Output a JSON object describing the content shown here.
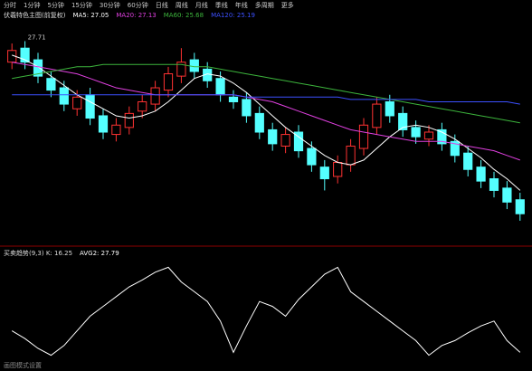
{
  "toolbar": [
    "分时",
    "1分钟",
    "5分钟",
    "15分钟",
    "30分钟",
    "60分钟",
    "日线",
    "周线",
    "月线",
    "季线",
    "年线",
    "多周期",
    "更多"
  ],
  "chart_data": [
    {
      "type": "candlestick",
      "title": "伏羲特色主图(前复权)",
      "annotation": "27.71",
      "ylim": [
        19.5,
        28.5
      ],
      "up_color": "#ff3232",
      "down_color": "#54ffff",
      "open": [
        27.0,
        27.6,
        27.1,
        26.3,
        25.9,
        25.0,
        25.6,
        24.7,
        23.9,
        24.2,
        24.9,
        25.2,
        25.8,
        26.4,
        27.1,
        26.7,
        26.3,
        25.5,
        25.4,
        24.8,
        24.1,
        23.4,
        24.0,
        23.3,
        22.5,
        22.1,
        22.6,
        23.3,
        24.2,
        25.3,
        24.8,
        24.2,
        23.7,
        24.1,
        23.6,
        23.1,
        22.5,
        22.0,
        21.6,
        21.1
      ],
      "high": [
        27.8,
        27.9,
        27.4,
        26.6,
        26.2,
        25.8,
        25.9,
        25.0,
        24.6,
        25.1,
        25.6,
        26.2,
        26.8,
        27.6,
        27.4,
        27.0,
        26.6,
        25.8,
        25.7,
        25.1,
        24.4,
        24.2,
        24.3,
        23.6,
        22.8,
        23.0,
        23.7,
        24.6,
        25.5,
        25.6,
        25.1,
        24.5,
        24.3,
        24.4,
        23.9,
        23.4,
        22.8,
        22.3,
        21.9,
        21.4
      ],
      "low": [
        26.7,
        26.7,
        26.1,
        25.5,
        24.9,
        24.7,
        24.3,
        23.7,
        23.6,
        23.9,
        24.6,
        24.9,
        25.5,
        26.1,
        26.3,
        25.9,
        25.3,
        25.0,
        24.4,
        23.7,
        23.2,
        23.1,
        22.9,
        22.3,
        21.5,
        21.8,
        22.3,
        23.0,
        23.9,
        24.4,
        23.8,
        23.5,
        23.4,
        23.2,
        22.7,
        22.1,
        21.6,
        21.2,
        20.7,
        20.2
      ],
      "close": [
        27.5,
        27.0,
        26.4,
        25.8,
        25.2,
        25.5,
        24.6,
        24.0,
        24.3,
        24.8,
        25.3,
        25.9,
        26.5,
        27.0,
        26.6,
        26.2,
        25.6,
        25.3,
        24.7,
        24.0,
        23.5,
        23.9,
        23.2,
        22.6,
        22.0,
        22.7,
        23.4,
        24.3,
        25.2,
        24.7,
        24.1,
        23.8,
        24.0,
        23.5,
        23.0,
        22.4,
        21.9,
        21.5,
        21.0,
        20.5
      ],
      "series": [
        {
          "name": "MA5: 27.05",
          "color": "#ffffff",
          "values": [
            27.3,
            27.1,
            26.8,
            26.4,
            26.0,
            25.6,
            25.3,
            25.0,
            24.7,
            24.6,
            24.7,
            24.9,
            25.3,
            25.8,
            26.3,
            26.5,
            26.4,
            26.1,
            25.7,
            25.2,
            24.7,
            24.2,
            23.8,
            23.4,
            23.0,
            22.7,
            22.6,
            22.8,
            23.3,
            23.8,
            24.2,
            24.3,
            24.2,
            24.0,
            23.7,
            23.3,
            22.9,
            22.4,
            22.0,
            21.5
          ]
        },
        {
          "name": "MA20: 27.13",
          "color": "#e040e0",
          "values": [
            27.0,
            26.9,
            26.8,
            26.7,
            26.6,
            26.5,
            26.3,
            26.1,
            25.9,
            25.8,
            25.7,
            25.6,
            25.6,
            25.6,
            25.6,
            25.6,
            25.6,
            25.6,
            25.5,
            25.4,
            25.3,
            25.1,
            24.9,
            24.7,
            24.5,
            24.3,
            24.1,
            24.0,
            23.9,
            23.8,
            23.7,
            23.6,
            23.6,
            23.6,
            23.5,
            23.4,
            23.3,
            23.2,
            23.0,
            22.8
          ]
        },
        {
          "name": "MA60: 25.68",
          "color": "#3cb43c",
          "values": [
            26.3,
            26.4,
            26.5,
            26.6,
            26.7,
            26.8,
            26.8,
            26.9,
            26.9,
            26.9,
            26.9,
            26.9,
            26.9,
            26.9,
            26.8,
            26.8,
            26.7,
            26.6,
            26.5,
            26.4,
            26.3,
            26.2,
            26.1,
            26.0,
            25.9,
            25.8,
            25.7,
            25.6,
            25.5,
            25.4,
            25.3,
            25.2,
            25.1,
            25.0,
            24.9,
            24.8,
            24.7,
            24.6,
            24.5,
            24.4
          ]
        },
        {
          "name": "MA120: 25.19",
          "color": "#3c50ff",
          "values": [
            25.6,
            25.6,
            25.6,
            25.6,
            25.6,
            25.6,
            25.6,
            25.6,
            25.6,
            25.6,
            25.6,
            25.6,
            25.6,
            25.6,
            25.6,
            25.6,
            25.6,
            25.6,
            25.5,
            25.5,
            25.5,
            25.5,
            25.5,
            25.5,
            25.5,
            25.5,
            25.4,
            25.4,
            25.4,
            25.4,
            25.4,
            25.4,
            25.3,
            25.3,
            25.3,
            25.3,
            25.3,
            25.3,
            25.3,
            25.2
          ]
        }
      ]
    },
    {
      "type": "line",
      "title": "买卖趋势(9,3) K: 16.25",
      "ylim": [
        0,
        100
      ],
      "series": [
        {
          "name": "AVG2: 27.79",
          "color": "#ffffff",
          "values": [
            30,
            22,
            12,
            5,
            15,
            30,
            45,
            55,
            65,
            75,
            82,
            90,
            95,
            80,
            70,
            60,
            40,
            8,
            35,
            60,
            55,
            45,
            62,
            75,
            88,
            95,
            70,
            60,
            50,
            40,
            30,
            20,
            5,
            15,
            20,
            28,
            35,
            40,
            20,
            8
          ]
        }
      ]
    }
  ],
  "footer": "画图模式设置"
}
